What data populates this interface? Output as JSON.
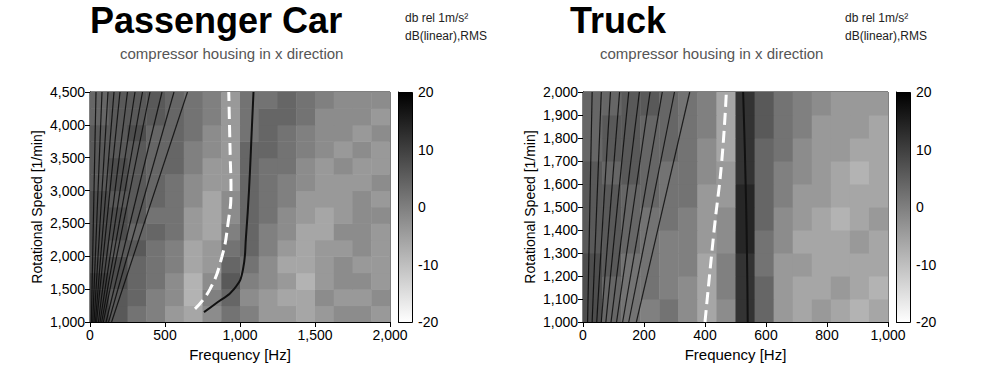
{
  "chart_data": [
    {
      "type": "heatmap",
      "title": "Passenger Car",
      "subtitle": "compressor housing in x direction",
      "units": [
        "db rel 1m/s²",
        "dB(linear),RMS"
      ],
      "x_label": "Frequency [Hz]",
      "y_label": "Rotational Speed [1/min]",
      "xlim": [
        0,
        2000
      ],
      "xticks": [
        0,
        500,
        1000,
        1500,
        2000
      ],
      "ylim": [
        1000,
        4500
      ],
      "yticks": [
        1000,
        1500,
        2000,
        2500,
        3000,
        3500,
        4000,
        4500
      ],
      "x_edges": [
        0,
        125,
        250,
        375,
        500,
        625,
        750,
        875,
        1000,
        1125,
        1250,
        1375,
        1500,
        1625,
        1750,
        1875,
        2000
      ],
      "y_edges": [
        1000,
        1250,
        1500,
        1750,
        2000,
        2250,
        2500,
        2750,
        3000,
        3250,
        3500,
        3750,
        4000,
        4250,
        4500
      ],
      "cells": [
        [
          10,
          6,
          2,
          0,
          -4,
          -6,
          -2,
          2,
          0,
          -4,
          -4,
          -6,
          -4,
          -2,
          -2,
          -4
        ],
        [
          10,
          6,
          4,
          0,
          -2,
          -8,
          0,
          4,
          -2,
          -4,
          -6,
          -6,
          -2,
          -4,
          -4,
          -2
        ],
        [
          10,
          8,
          4,
          2,
          -2,
          -8,
          -2,
          6,
          0,
          -2,
          -4,
          -8,
          -4,
          -2,
          -2,
          -4
        ],
        [
          8,
          8,
          4,
          2,
          0,
          -6,
          -4,
          4,
          2,
          -2,
          -6,
          -6,
          -4,
          -2,
          -4,
          -4
        ],
        [
          8,
          6,
          6,
          2,
          0,
          -6,
          -4,
          2,
          4,
          0,
          -4,
          -6,
          -4,
          -4,
          -2,
          -4
        ],
        [
          8,
          8,
          4,
          4,
          2,
          -4,
          -6,
          0,
          4,
          0,
          -2,
          -6,
          -6,
          -2,
          -2,
          -4
        ],
        [
          8,
          8,
          6,
          2,
          2,
          -4,
          -6,
          -2,
          4,
          2,
          -2,
          -4,
          -6,
          -4,
          -2,
          -2
        ],
        [
          8,
          6,
          6,
          4,
          2,
          -2,
          -6,
          -2,
          4,
          2,
          0,
          -4,
          -4,
          -4,
          -2,
          -4
        ],
        [
          6,
          8,
          6,
          4,
          2,
          -2,
          -4,
          -4,
          4,
          2,
          0,
          -2,
          -4,
          -4,
          -4,
          -2
        ],
        [
          6,
          8,
          6,
          4,
          4,
          0,
          -4,
          -4,
          4,
          2,
          2,
          -2,
          -4,
          -2,
          -4,
          -4
        ],
        [
          6,
          6,
          6,
          4,
          4,
          0,
          -2,
          -4,
          4,
          4,
          2,
          0,
          -2,
          -4,
          -2,
          -4
        ],
        [
          6,
          6,
          8,
          4,
          4,
          2,
          -2,
          -4,
          2,
          4,
          2,
          0,
          -2,
          -2,
          -4,
          -2
        ],
        [
          4,
          6,
          6,
          6,
          4,
          2,
          0,
          -4,
          2,
          4,
          4,
          2,
          -2,
          -2,
          -2,
          -4
        ],
        [
          4,
          6,
          6,
          6,
          4,
          2,
          0,
          -4,
          2,
          2,
          4,
          2,
          0,
          -2,
          -2,
          -2
        ]
      ],
      "colorbar": {
        "range": [
          -20,
          20
        ],
        "ticks": [
          20,
          10,
          0,
          -10,
          -20
        ],
        "colors": [
          "#ffffff",
          "#000000"
        ]
      },
      "curves": [
        {
          "color": "#ffffff",
          "line_style": "dashed",
          "x": [
            700,
            800,
            880,
            920,
            940,
            935,
            930,
            925
          ],
          "y": [
            1200,
            1500,
            2000,
            2500,
            3000,
            3500,
            4000,
            4500
          ]
        },
        {
          "color": "#111111",
          "line_style": "solid",
          "x": [
            760,
            850,
            960,
            1020,
            1040,
            1060,
            1080,
            1090
          ],
          "y": [
            1150,
            1300,
            1500,
            1800,
            2300,
            3000,
            4000,
            4500
          ]
        }
      ],
      "order_lines": {
        "color": "#000000",
        "x0": [
          9,
          18,
          27,
          36,
          44,
          56,
          67,
          78,
          89,
          107,
          124,
          144
        ],
        "x1": [
          40,
          80,
          120,
          160,
          200,
          250,
          300,
          350,
          400,
          480,
          560,
          650
        ],
        "y0": 1000,
        "y1": 4500
      }
    },
    {
      "type": "heatmap",
      "title": "Truck",
      "subtitle": "compressor housing in x direction",
      "units": [
        "db rel 1m/s²",
        "dB(linear),RMS"
      ],
      "x_label": "Frequency [Hz]",
      "y_label": "Rotational Speed [1/min]",
      "xlim": [
        0,
        1000
      ],
      "xticks": [
        0,
        200,
        400,
        600,
        800,
        1000
      ],
      "ylim": [
        1000,
        2000
      ],
      "yticks": [
        1000,
        1100,
        1200,
        1300,
        1400,
        1500,
        1600,
        1700,
        1800,
        1900,
        2000
      ],
      "x_edges": [
        0,
        62.5,
        125,
        187.5,
        250,
        312.5,
        375,
        437.5,
        500,
        562.5,
        625,
        687.5,
        750,
        812.5,
        875,
        937.5,
        1000
      ],
      "y_edges": [
        1000,
        1100,
        1200,
        1300,
        1400,
        1500,
        1600,
        1700,
        1800,
        1900,
        2000
      ],
      "cells": [
        [
          8,
          4,
          2,
          0,
          2,
          -2,
          -6,
          -2,
          12,
          4,
          -4,
          -6,
          -4,
          -6,
          -8,
          -6
        ],
        [
          8,
          4,
          2,
          2,
          0,
          -2,
          -6,
          0,
          12,
          4,
          -4,
          -6,
          -6,
          -4,
          -6,
          -8
        ],
        [
          8,
          6,
          2,
          2,
          0,
          0,
          -6,
          0,
          12,
          2,
          -4,
          -4,
          -6,
          -6,
          -6,
          -6
        ],
        [
          6,
          6,
          4,
          2,
          0,
          0,
          -4,
          -2,
          14,
          2,
          -2,
          -6,
          -6,
          -6,
          -4,
          -6
        ],
        [
          6,
          6,
          4,
          2,
          2,
          0,
          -4,
          -2,
          14,
          4,
          -2,
          -4,
          -6,
          -8,
          -6,
          -4
        ],
        [
          6,
          6,
          4,
          4,
          2,
          2,
          -4,
          -4,
          14,
          4,
          0,
          -4,
          -4,
          -6,
          -6,
          -6
        ],
        [
          6,
          4,
          6,
          4,
          2,
          2,
          -2,
          -4,
          12,
          4,
          0,
          -2,
          -4,
          -6,
          -8,
          -6
        ],
        [
          4,
          6,
          6,
          4,
          4,
          2,
          -2,
          -6,
          12,
          4,
          2,
          -2,
          -4,
          -4,
          -6,
          -6
        ],
        [
          4,
          6,
          6,
          4,
          4,
          2,
          0,
          -6,
          12,
          6,
          2,
          0,
          -4,
          -4,
          -4,
          -6
        ],
        [
          4,
          4,
          6,
          6,
          4,
          2,
          0,
          -6,
          12,
          6,
          2,
          0,
          -2,
          -4,
          -4,
          -4
        ]
      ],
      "colorbar": {
        "range": [
          -20,
          20
        ],
        "ticks": [
          20,
          10,
          0,
          -10,
          -20
        ],
        "colors": [
          "#ffffff",
          "#000000"
        ]
      },
      "curves": [
        {
          "color": "#ffffff",
          "line_style": "dashed",
          "x": [
            400,
            430,
            455,
            470
          ],
          "y": [
            1000,
            1400,
            1700,
            2000
          ]
        },
        {
          "color": "#111111",
          "line_style": "solid",
          "x": [
            540,
            535,
            525
          ],
          "y": [
            1000,
            1500,
            2000
          ]
        }
      ],
      "order_lines": {
        "color": "#000000",
        "x0": [
          15,
          30,
          45,
          60,
          75,
          92,
          110,
          130,
          150,
          175
        ],
        "x1": [
          30,
          60,
          90,
          120,
          150,
          185,
          220,
          260,
          300,
          350
        ],
        "y0": 1000,
        "y1": 2000
      }
    }
  ]
}
